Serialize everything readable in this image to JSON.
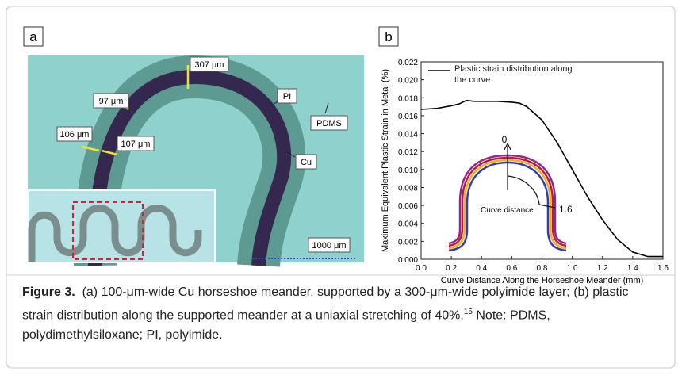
{
  "micrograph": {
    "panel_label": "a",
    "annotations": [
      "307 μm",
      "97 μm",
      "106 μm",
      "107 μm",
      "PI",
      "PDMS",
      "Cu"
    ],
    "scale_bar": "1000 μm"
  },
  "chart_data": {
    "type": "line",
    "panel_label": "b",
    "xlabel": "Curve Distance Along the Horseshoe Meander (mm)",
    "ylabel": "Maximum Equivalent Plastic Strain in Metal (%)",
    "x": [
      0,
      0.1,
      0.2,
      0.25,
      0.3,
      0.35,
      0.4,
      0.5,
      0.6,
      0.65,
      0.7,
      0.8,
      0.9,
      1.0,
      1.1,
      1.2,
      1.3,
      1.4,
      1.5,
      1.6
    ],
    "series": [
      {
        "name": "Plastic strain distribution along the curve",
        "color": "#000000",
        "values": [
          0.0167,
          0.0168,
          0.0171,
          0.0173,
          0.0177,
          0.0176,
          0.0176,
          0.0176,
          0.0175,
          0.0174,
          0.017,
          0.0155,
          0.013,
          0.01,
          0.007,
          0.0044,
          0.0022,
          0.0008,
          0.0003,
          0.0003
        ]
      }
    ],
    "xlim": [
      0,
      1.6
    ],
    "ylim": [
      0,
      0.022
    ],
    "xticks": [
      {
        "value": 0,
        "label": "0.0"
      },
      0.2,
      0.4,
      0.6,
      0.8,
      {
        "value": 1,
        "label": "1.0"
      },
      1.2,
      1.4,
      1.6
    ],
    "yticks": [
      {
        "value": 0,
        "label": "0.000"
      },
      0.002,
      0.004,
      0.006,
      0.008,
      {
        "value": 0.01,
        "label": "0.010"
      },
      0.012,
      0.014,
      0.016,
      0.018,
      {
        "value": 0.02,
        "label": "0.020"
      },
      0.022
    ],
    "inset_annotations": [
      "0",
      "1.6",
      "Curve distance"
    ]
  },
  "caption": {
    "label": "Figure 3.",
    "text": "(a) 100-μm-wide Cu horseshoe meander, supported by a 300-μm-wide polyimide layer; (b) plastic strain distribution along the supported meander at a uniaxial stretching of 40%.",
    "reference": "15",
    "note": "Note: PDMS, polydimethylsiloxane; PI, polyimide."
  }
}
